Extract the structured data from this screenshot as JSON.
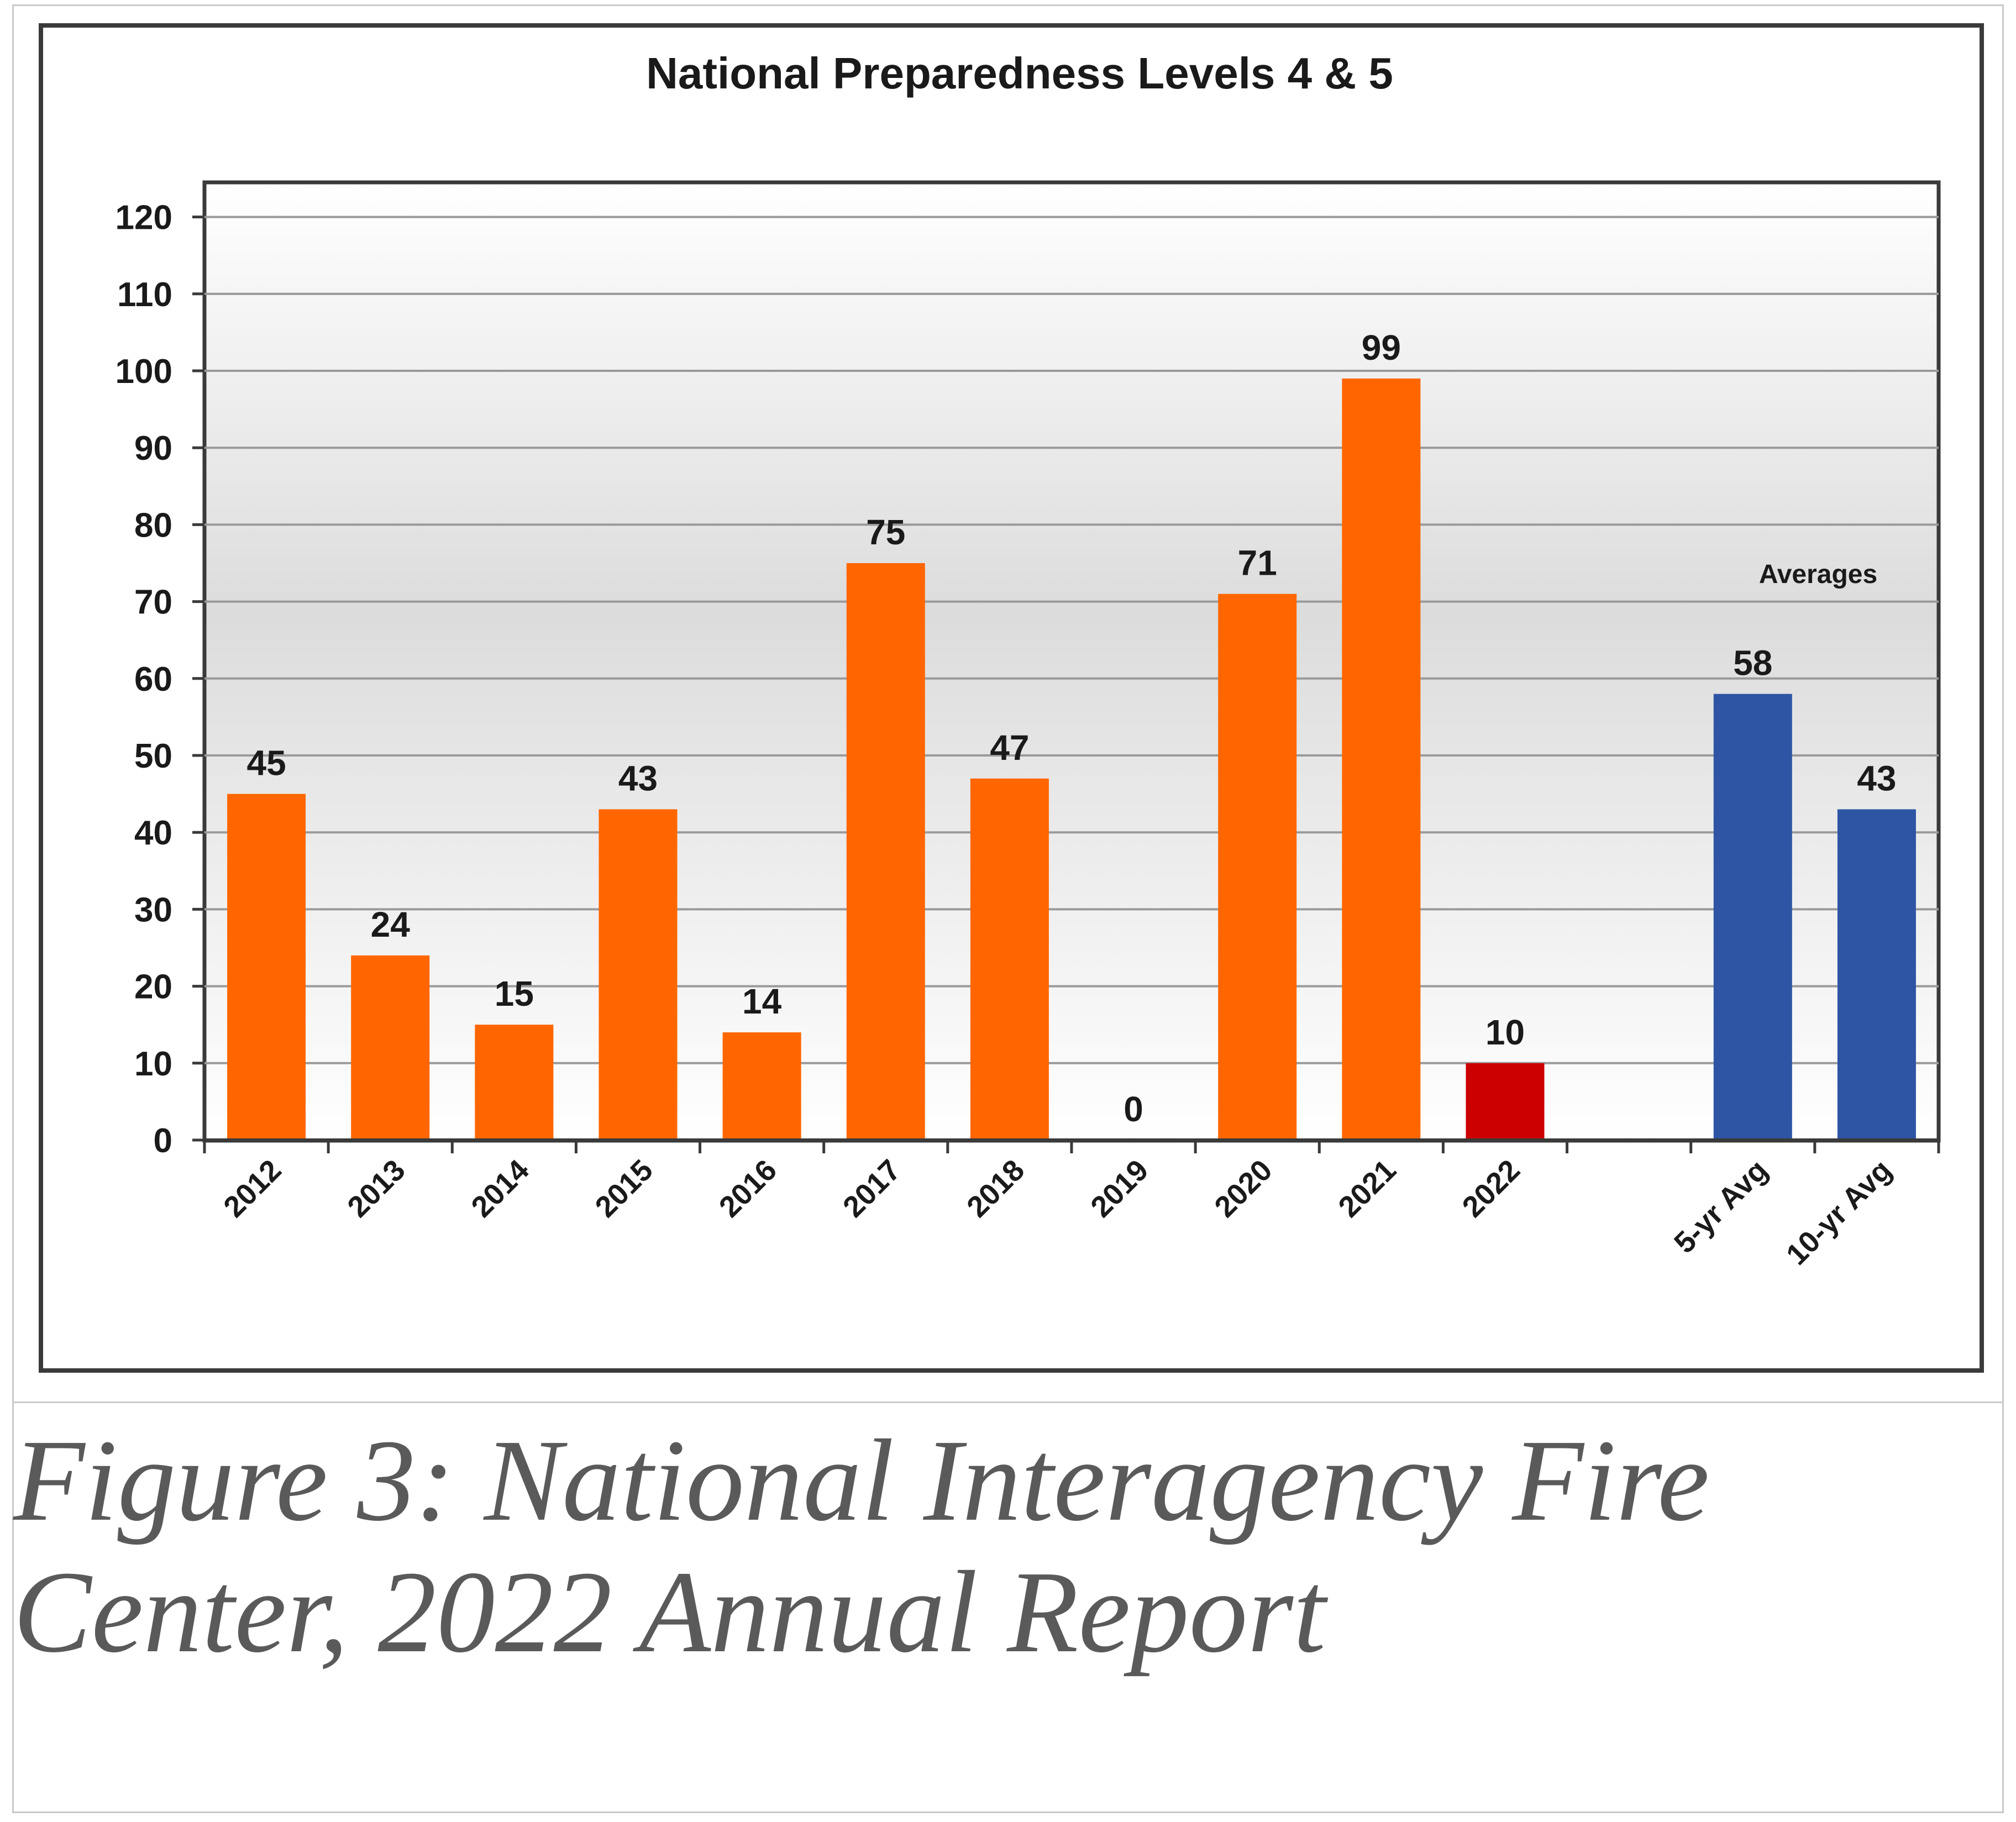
{
  "chart_data": {
    "type": "bar",
    "title": "National Preparedness Levels 4 & 5",
    "xlabel": "",
    "ylabel": "",
    "ylim": [
      0,
      120
    ],
    "yticks": [
      0,
      10,
      20,
      30,
      40,
      50,
      60,
      70,
      80,
      90,
      100,
      110,
      120
    ],
    "grid": true,
    "categories": [
      "2012",
      "2013",
      "2014",
      "2015",
      "2016",
      "2017",
      "2018",
      "2019",
      "2020",
      "2021",
      "2022",
      "",
      "5-yr Avg",
      "10-yr Avg"
    ],
    "values": [
      45,
      24,
      15,
      43,
      14,
      75,
      47,
      0,
      71,
      99,
      10,
      null,
      58,
      43
    ],
    "data_labels": [
      "45",
      "24",
      "15",
      "43",
      "14",
      "75",
      "47",
      "0",
      "71",
      "99",
      "10",
      "",
      "58",
      "43"
    ],
    "bar_colors": [
      "#ff6600",
      "#ff6600",
      "#ff6600",
      "#ff6600",
      "#ff6600",
      "#ff6600",
      "#ff6600",
      "#ff6600",
      "#ff6600",
      "#ff6600",
      "#cc0000",
      "#ffffff",
      "#2e55a4",
      "#2e55a4"
    ],
    "annotation": "Averages"
  },
  "caption": "Figure 3: National Interagency Fire Center, 2022 Annual Report"
}
